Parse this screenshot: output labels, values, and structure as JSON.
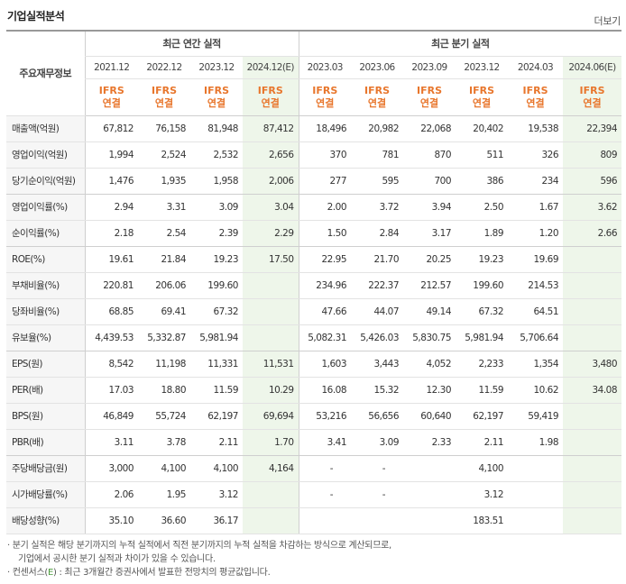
{
  "title": "기업실적분석",
  "more_label": "더보기",
  "row_header_label": "주요재무정보",
  "annual_group": "최근 연간 실적",
  "quarter_group": "최근 분기 실적",
  "annual_periods": [
    "2021.12",
    "2022.12",
    "2023.12",
    "2024.12(E)"
  ],
  "quarter_periods": [
    "2023.03",
    "2023.06",
    "2023.09",
    "2023.12",
    "2024.03",
    "2024.06(E)"
  ],
  "ifrs_line1": "IFRS",
  "ifrs_line2": "연결",
  "rows": [
    {
      "label": "매출액(억원)",
      "annual": [
        "67,812",
        "76,158",
        "81,948",
        "87,412"
      ],
      "quarter": [
        "18,496",
        "20,982",
        "22,068",
        "20,402",
        "19,538",
        "22,394"
      ]
    },
    {
      "label": "영업이익(억원)",
      "annual": [
        "1,994",
        "2,524",
        "2,532",
        "2,656"
      ],
      "quarter": [
        "370",
        "781",
        "870",
        "511",
        "326",
        "809"
      ]
    },
    {
      "label": "당기순이익(억원)",
      "annual": [
        "1,476",
        "1,935",
        "1,958",
        "2,006"
      ],
      "quarter": [
        "277",
        "595",
        "700",
        "386",
        "234",
        "596"
      ]
    },
    {
      "label": "영업이익률(%)",
      "annual": [
        "2.94",
        "3.31",
        "3.09",
        "3.04"
      ],
      "quarter": [
        "2.00",
        "3.72",
        "3.94",
        "2.50",
        "1.67",
        "3.62"
      ]
    },
    {
      "label": "순이익률(%)",
      "annual": [
        "2.18",
        "2.54",
        "2.39",
        "2.29"
      ],
      "quarter": [
        "1.50",
        "2.84",
        "3.17",
        "1.89",
        "1.20",
        "2.66"
      ]
    },
    {
      "label": "ROE(%)",
      "annual": [
        "19.61",
        "21.84",
        "19.23",
        "17.50"
      ],
      "quarter": [
        "22.95",
        "21.70",
        "20.25",
        "19.23",
        "19.69",
        ""
      ]
    },
    {
      "label": "부채비율(%)",
      "annual": [
        "220.81",
        "206.06",
        "199.60",
        ""
      ],
      "quarter": [
        "234.96",
        "222.37",
        "212.57",
        "199.60",
        "214.53",
        ""
      ]
    },
    {
      "label": "당좌비율(%)",
      "annual": [
        "68.85",
        "69.41",
        "67.32",
        ""
      ],
      "quarter": [
        "47.66",
        "44.07",
        "49.14",
        "67.32",
        "64.51",
        ""
      ]
    },
    {
      "label": "유보율(%)",
      "annual": [
        "4,439.53",
        "5,332.87",
        "5,981.94",
        ""
      ],
      "quarter": [
        "5,082.31",
        "5,426.03",
        "5,830.75",
        "5,981.94",
        "5,706.64",
        ""
      ]
    },
    {
      "label": "EPS(원)",
      "annual": [
        "8,542",
        "11,198",
        "11,331",
        "11,531"
      ],
      "quarter": [
        "1,603",
        "3,443",
        "4,052",
        "2,233",
        "1,354",
        "3,480"
      ]
    },
    {
      "label": "PER(배)",
      "annual": [
        "17.03",
        "18.80",
        "11.59",
        "10.29"
      ],
      "quarter": [
        "16.08",
        "15.32",
        "12.30",
        "11.59",
        "10.62",
        "34.08"
      ]
    },
    {
      "label": "BPS(원)",
      "annual": [
        "46,849",
        "55,724",
        "62,197",
        "69,694"
      ],
      "quarter": [
        "53,216",
        "56,656",
        "60,640",
        "62,197",
        "59,419",
        ""
      ]
    },
    {
      "label": "PBR(배)",
      "annual": [
        "3.11",
        "3.78",
        "2.11",
        "1.70"
      ],
      "quarter": [
        "3.41",
        "3.09",
        "2.33",
        "2.11",
        "1.98",
        ""
      ]
    },
    {
      "label": "주당배당금(원)",
      "annual": [
        "3,000",
        "4,100",
        "4,100",
        "4,164"
      ],
      "quarter": [
        "-",
        "-",
        "",
        "4,100",
        "",
        ""
      ]
    },
    {
      "label": "시가배당률(%)",
      "annual": [
        "2.06",
        "1.95",
        "3.12",
        ""
      ],
      "quarter": [
        "-",
        "-",
        "",
        "3.12",
        "",
        ""
      ]
    },
    {
      "label": "배당성향(%)",
      "annual": [
        "35.10",
        "36.60",
        "36.17",
        ""
      ],
      "quarter": [
        "",
        "",
        "",
        "183.51",
        "",
        ""
      ]
    }
  ],
  "notes": {
    "line1": "· 분기 실적은 해당 분기까지의 누적 실적에서 직전 분기까지의 누적 실적을 차감하는 방식으로 계산되므로,",
    "line2": "기업에서 공시한 분기 실적과 차이가 있을 수 있습니다.",
    "line3_prefix": "· 컨센서스(",
    "line3_mark": "E",
    "line3_suffix": ") : 최근 3개월간 증권사에서 발표한 전망치의 평균값입니다."
  }
}
